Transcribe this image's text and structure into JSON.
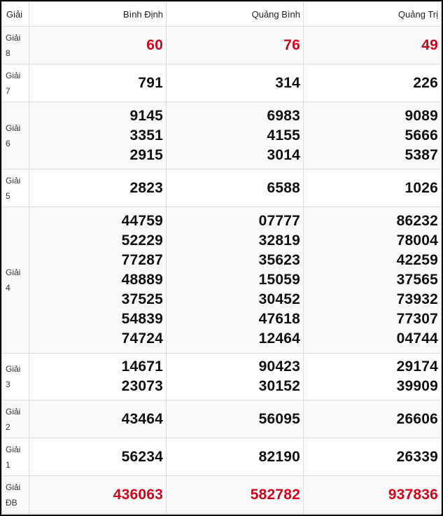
{
  "header": {
    "label": "Giải",
    "provinces": [
      "Bình Định",
      "Quảng Bình",
      "Quảng Trị"
    ]
  },
  "rows": [
    {
      "label1": "Giải",
      "label2": "8",
      "values": [
        [
          "60"
        ],
        [
          "76"
        ],
        [
          "49"
        ]
      ],
      "highlight": true
    },
    {
      "label1": "Giải",
      "label2": "7",
      "values": [
        [
          "791"
        ],
        [
          "314"
        ],
        [
          "226"
        ]
      ]
    },
    {
      "label1": "Giải",
      "label2": "6",
      "values": [
        [
          "9145",
          "3351",
          "2915"
        ],
        [
          "6983",
          "4155",
          "3014"
        ],
        [
          "9089",
          "5666",
          "5387"
        ]
      ]
    },
    {
      "label1": "Giải",
      "label2": "5",
      "values": [
        [
          "2823"
        ],
        [
          "6588"
        ],
        [
          "1026"
        ]
      ]
    },
    {
      "label1": "Giải",
      "label2": "4",
      "values": [
        [
          "44759",
          "52229",
          "77287",
          "48889",
          "37525",
          "54839",
          "74724"
        ],
        [
          "07777",
          "32819",
          "35623",
          "15059",
          "30452",
          "47618",
          "12464"
        ],
        [
          "86232",
          "78004",
          "42259",
          "37565",
          "73932",
          "77307",
          "04744"
        ]
      ]
    },
    {
      "label1": "Giải",
      "label2": "3",
      "values": [
        [
          "14671",
          "23073"
        ],
        [
          "90423",
          "30152"
        ],
        [
          "29174",
          "39909"
        ]
      ]
    },
    {
      "label1": "Giải",
      "label2": "2",
      "values": [
        [
          "43464"
        ],
        [
          "56095"
        ],
        [
          "26606"
        ]
      ]
    },
    {
      "label1": "Giải",
      "label2": "1",
      "values": [
        [
          "56234"
        ],
        [
          "82190"
        ],
        [
          "26339"
        ]
      ]
    },
    {
      "label1": "Giải",
      "label2": "ĐB",
      "values": [
        [
          "436063"
        ],
        [
          "582782"
        ],
        [
          "937836"
        ]
      ],
      "highlight": true
    }
  ],
  "colors": {
    "highlight": "#d0021b",
    "text": "#111111"
  }
}
